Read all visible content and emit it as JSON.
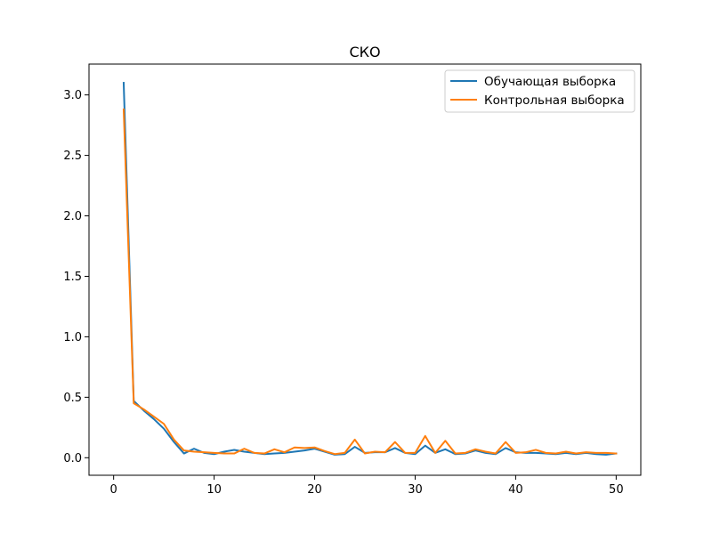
{
  "chart_data": {
    "type": "line",
    "title": "СКО",
    "xlabel": "",
    "ylabel": "",
    "xlim": [
      -2.45,
      52.45
    ],
    "ylim": [
      -0.145,
      3.255
    ],
    "xticks": [
      0,
      10,
      20,
      30,
      40,
      50
    ],
    "yticks": [
      0.0,
      0.5,
      1.0,
      1.5,
      2.0,
      2.5,
      3.0
    ],
    "ytick_labels": [
      "0.0",
      "0.5",
      "1.0",
      "1.5",
      "2.0",
      "2.5",
      "3.0"
    ],
    "grid": false,
    "legend_position": "top-right",
    "x": [
      1,
      2,
      3,
      4,
      5,
      6,
      7,
      8,
      9,
      10,
      11,
      12,
      13,
      14,
      15,
      16,
      17,
      18,
      19,
      20,
      21,
      22,
      23,
      24,
      25,
      26,
      27,
      28,
      29,
      30,
      31,
      32,
      33,
      34,
      35,
      36,
      37,
      38,
      39,
      40,
      41,
      42,
      43,
      44,
      45,
      46,
      47,
      48,
      49,
      50
    ],
    "series": [
      {
        "name": "Обучающая выборка",
        "color": "#1f77b4",
        "values": [
          3.1,
          0.47,
          0.39,
          0.32,
          0.24,
          0.13,
          0.035,
          0.075,
          0.04,
          0.03,
          0.05,
          0.065,
          0.05,
          0.04,
          0.03,
          0.035,
          0.04,
          0.05,
          0.06,
          0.075,
          0.05,
          0.025,
          0.03,
          0.09,
          0.04,
          0.045,
          0.045,
          0.08,
          0.04,
          0.03,
          0.1,
          0.04,
          0.07,
          0.03,
          0.035,
          0.06,
          0.04,
          0.03,
          0.08,
          0.045,
          0.04,
          0.04,
          0.035,
          0.03,
          0.04,
          0.03,
          0.04,
          0.03,
          0.025,
          0.035
        ]
      },
      {
        "name": "Контрольная выборка",
        "color": "#ff7f0e",
        "values": [
          2.88,
          0.45,
          0.4,
          0.34,
          0.28,
          0.15,
          0.06,
          0.05,
          0.045,
          0.04,
          0.035,
          0.035,
          0.075,
          0.04,
          0.035,
          0.07,
          0.045,
          0.085,
          0.08,
          0.085,
          0.055,
          0.03,
          0.04,
          0.15,
          0.035,
          0.05,
          0.045,
          0.13,
          0.04,
          0.04,
          0.18,
          0.04,
          0.14,
          0.035,
          0.04,
          0.07,
          0.05,
          0.035,
          0.13,
          0.04,
          0.045,
          0.065,
          0.04,
          0.035,
          0.05,
          0.035,
          0.045,
          0.04,
          0.04,
          0.035
        ]
      }
    ]
  }
}
